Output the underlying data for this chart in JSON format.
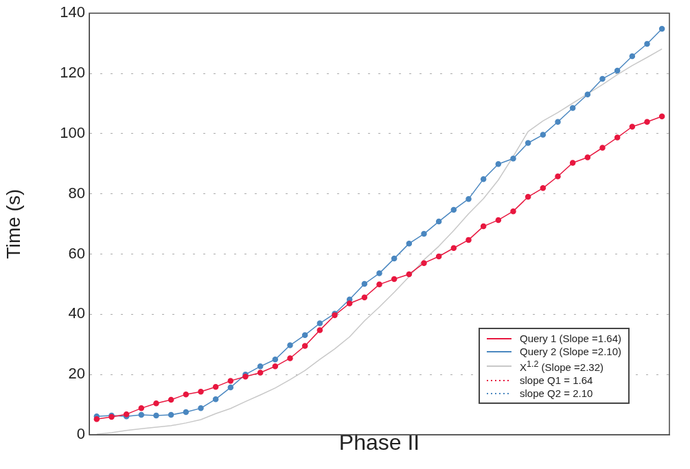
{
  "chart_data": {
    "type": "line",
    "xlabel": "Phase II",
    "ylabel": "Time (s)",
    "categories": [
      null,
      null,
      null,
      null,
      null,
      null,
      null,
      null,
      null,
      null,
      null,
      null,
      null,
      null,
      null,
      null,
      null,
      null,
      null,
      null,
      null,
      null,
      null,
      null,
      null,
      null,
      null,
      null,
      null,
      null,
      null,
      null,
      null,
      null,
      null,
      null,
      null,
      null,
      null
    ],
    "ylim": [
      0,
      140
    ],
    "yticks": [
      0,
      20,
      40,
      60,
      80,
      100,
      120,
      140
    ],
    "grid": "y",
    "legend": "bottom right",
    "series": [
      {
        "name": "Query 1 (Slope =1.64)",
        "color": "#e8173f",
        "marker": "circle",
        "line_style": "solid",
        "values": [
          5.2,
          5.9,
          6.8,
          8.8,
          10.4,
          11.6,
          13.4,
          14.3,
          15.9,
          17.9,
          19.3,
          20.6,
          22.7,
          25.4,
          29.5,
          34.7,
          39.7,
          43.6,
          45.6,
          49.9,
          51.7,
          53.3,
          57,
          59.2,
          62,
          64.7,
          69.2,
          71.3,
          74.2,
          79,
          81.9,
          85.8,
          90.3,
          92.1,
          95.3,
          98.7,
          102.3,
          103.9,
          105.7
        ]
      },
      {
        "name": "Query 2 (Slope =2.10)",
        "color": "#4a87c0",
        "marker": "circle",
        "line_style": "solid",
        "values": [
          6.1,
          6.4,
          6.1,
          6.6,
          6.4,
          6.6,
          7.5,
          8.8,
          11.8,
          15.7,
          20,
          22.7,
          25,
          29.7,
          33.1,
          37,
          40.2,
          44.9,
          50.1,
          53.6,
          58.5,
          63.5,
          66.7,
          70.8,
          74.7,
          78.3,
          84.9,
          89.9,
          91.7,
          96.9,
          99.6,
          103.9,
          108.5,
          113,
          118.2,
          120.9,
          125.7,
          129.8,
          134.8
        ]
      },
      {
        "name": "X$^{1.2}$ (Slope =2.32)",
        "color": "#c8c8c8",
        "marker": "none",
        "line_style": "solid",
        "values": [
          0.2,
          0.7,
          1.4,
          2,
          2.5,
          3,
          3.9,
          5,
          7,
          8.7,
          11,
          13.2,
          15.5,
          18.3,
          21.3,
          25,
          28.5,
          32.5,
          37.8,
          42.4,
          47.3,
          52.5,
          58.1,
          62.6,
          67.8,
          73.4,
          78.4,
          84.6,
          92.4,
          100.7,
          104.2,
          107,
          110.1,
          113.2,
          116.3,
          119.6,
          122.6,
          125.3,
          128.1
        ]
      },
      {
        "name": "slope Q1 = 1.64",
        "color": "#e8173f",
        "marker": "none",
        "line_style": "dotted",
        "values": [
          null,
          null,
          null,
          null,
          null,
          null,
          null,
          null,
          null,
          null,
          null,
          null,
          null,
          null,
          null,
          null,
          null,
          null,
          null,
          null,
          null,
          null,
          null,
          null,
          null,
          null,
          null,
          null,
          null,
          null,
          null,
          null,
          null,
          null,
          null,
          null,
          null,
          null,
          null
        ]
      },
      {
        "name": "slope Q2 = 2.10",
        "color": "#4a87c0",
        "marker": "none",
        "line_style": "dotted",
        "values": [
          null,
          null,
          null,
          null,
          null,
          null,
          null,
          null,
          null,
          null,
          null,
          null,
          null,
          null,
          null,
          null,
          null,
          null,
          null,
          null,
          null,
          null,
          null,
          null,
          null,
          null,
          null,
          null,
          null,
          null,
          null,
          null,
          null,
          null,
          null,
          null,
          null,
          null,
          null
        ]
      }
    ]
  }
}
